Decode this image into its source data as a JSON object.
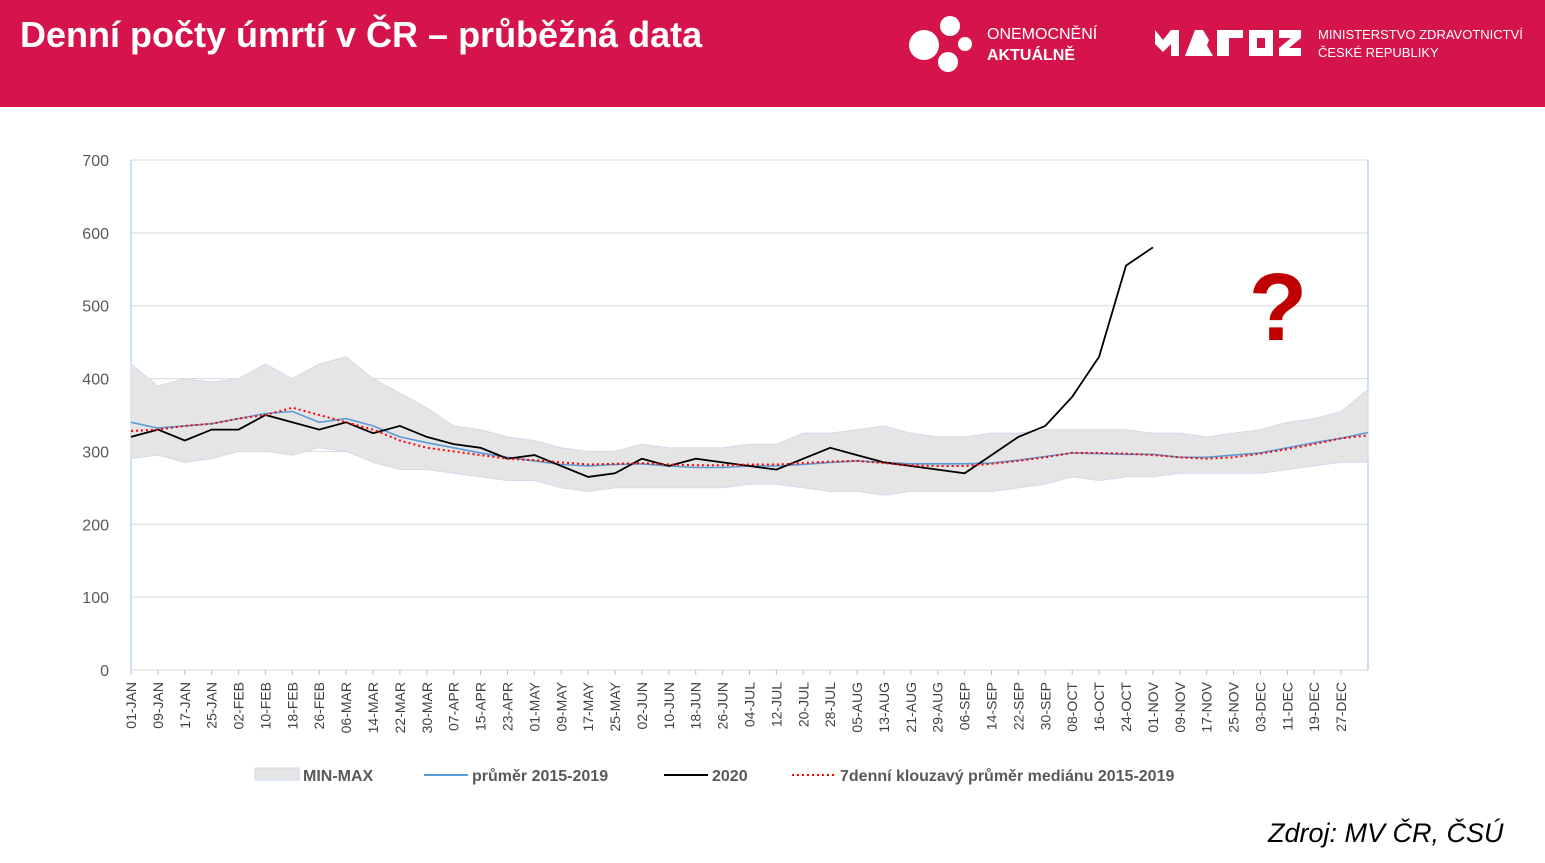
{
  "header": {
    "title": "Denní počty úmrtí v ČR – průběžná data",
    "logo1_line1": "ONEMOCNĚNÍ",
    "logo1_line2": "AKTUÁLNĚ",
    "logo2_line1": "MINISTERSTVO ZDRAVOTNICTVÍ",
    "logo2_line2": "ČESKÉ REPUBLIKY",
    "logo2_icon": "mzcr-logo-icon",
    "logo1_icon": "dots-logo-icon",
    "background_color": "#d4144a"
  },
  "source": "Zdroj: MV ČR, ČSÚ",
  "annotation": "?",
  "chart_data": {
    "type": "line",
    "title": "",
    "xlabel": "",
    "ylabel": "",
    "ylim": [
      0,
      700
    ],
    "yticks": [
      0,
      100,
      200,
      300,
      400,
      500,
      600,
      700
    ],
    "grid": true,
    "legend_position": "bottom",
    "x_tick_labels": [
      "01-JAN",
      "09-JAN",
      "17-JAN",
      "25-JAN",
      "02-FEB",
      "10-FEB",
      "18-FEB",
      "26-FEB",
      "06-MAR",
      "14-MAR",
      "22-MAR",
      "30-MAR",
      "07-APR",
      "15-APR",
      "23-APR",
      "01-MAY",
      "09-MAY",
      "17-MAY",
      "25-MAY",
      "02-JUN",
      "10-JUN",
      "18-JUN",
      "26-JUN",
      "04-JUL",
      "12-JUL",
      "20-JUL",
      "28-JUL",
      "05-AUG",
      "13-AUG",
      "21-AUG",
      "29-AUG",
      "06-SEP",
      "14-SEP",
      "22-SEP",
      "30-SEP",
      "08-OCT",
      "16-OCT",
      "24-OCT",
      "01-NOV",
      "09-NOV",
      "17-NOV",
      "25-NOV",
      "03-DEC",
      "11-DEC",
      "19-DEC",
      "27-DEC"
    ],
    "x_points": [
      "01-JAN",
      "09-JAN",
      "17-JAN",
      "25-JAN",
      "02-FEB",
      "10-FEB",
      "18-FEB",
      "26-FEB",
      "06-MAR",
      "14-MAR",
      "22-MAR",
      "30-MAR",
      "07-APR",
      "15-APR",
      "23-APR",
      "01-MAY",
      "09-MAY",
      "17-MAY",
      "25-MAY",
      "02-JUN",
      "10-JUN",
      "18-JUN",
      "26-JUN",
      "04-JUL",
      "12-JUL",
      "20-JUL",
      "28-JUL",
      "05-AUG",
      "13-AUG",
      "21-AUG",
      "29-AUG",
      "06-SEP",
      "14-SEP",
      "22-SEP",
      "30-SEP",
      "08-OCT",
      "16-OCT",
      "24-OCT",
      "01-NOV",
      "09-NOV",
      "17-NOV",
      "25-NOV",
      "03-DEC",
      "11-DEC",
      "19-DEC",
      "27-DEC",
      "31-DEC"
    ],
    "series": [
      {
        "name": "MIN-MAX",
        "kind": "band",
        "color": "#e5e5e5",
        "min": [
          290,
          295,
          285,
          290,
          300,
          300,
          295,
          305,
          300,
          285,
          275,
          275,
          270,
          265,
          260,
          260,
          250,
          245,
          250,
          250,
          250,
          250,
          250,
          255,
          255,
          250,
          245,
          245,
          240,
          245,
          245,
          245,
          245,
          250,
          255,
          265,
          260,
          265,
          265,
          270,
          270,
          270,
          270,
          275,
          280,
          285,
          285
        ],
        "max": [
          420,
          390,
          400,
          395,
          400,
          420,
          400,
          420,
          430,
          400,
          380,
          360,
          335,
          330,
          320,
          315,
          305,
          300,
          300,
          310,
          305,
          305,
          305,
          310,
          310,
          325,
          325,
          330,
          335,
          325,
          320,
          320,
          325,
          325,
          330,
          330,
          330,
          330,
          325,
          325,
          320,
          325,
          330,
          340,
          345,
          355,
          385
        ]
      },
      {
        "name": "průměr 2015-2019",
        "kind": "line",
        "color": "#5b9bd5",
        "values": [
          340,
          332,
          335,
          338,
          345,
          352,
          355,
          340,
          345,
          335,
          320,
          312,
          305,
          298,
          292,
          287,
          282,
          280,
          282,
          283,
          280,
          278,
          278,
          280,
          280,
          282,
          285,
          287,
          285,
          283,
          283,
          283,
          284,
          288,
          293,
          298,
          297,
          296,
          296,
          292,
          292,
          295,
          298,
          305,
          312,
          318,
          326
        ]
      },
      {
        "name": "2020",
        "kind": "line",
        "color": "#000000",
        "values": [
          320,
          330,
          315,
          330,
          330,
          350,
          340,
          330,
          340,
          325,
          335,
          320,
          310,
          305,
          290,
          295,
          280,
          265,
          270,
          290,
          280,
          290,
          285,
          280,
          275,
          290,
          305,
          295,
          285,
          280,
          275,
          270,
          295,
          320,
          335,
          375,
          430,
          555,
          580
        ]
      },
      {
        "name": "7denní klouzavý průměr mediánu 2015-2019",
        "kind": "dotted",
        "color": "#ff0000",
        "values": [
          328,
          330,
          335,
          338,
          345,
          350,
          360,
          350,
          340,
          330,
          315,
          305,
          300,
          295,
          290,
          288,
          285,
          282,
          283,
          284,
          282,
          281,
          281,
          282,
          282,
          284,
          286,
          287,
          284,
          281,
          280,
          280,
          283,
          287,
          292,
          298,
          298,
          297,
          295,
          292,
          290,
          292,
          297,
          303,
          310,
          318,
          322
        ]
      }
    ]
  }
}
